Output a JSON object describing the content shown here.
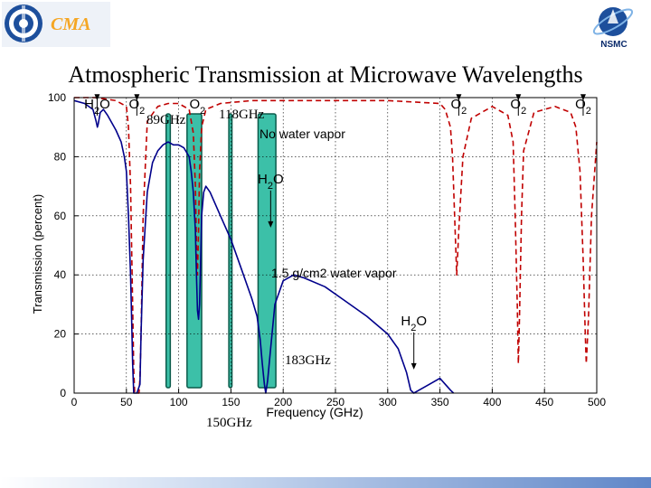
{
  "header": {
    "cma_logo_text": "CMA",
    "nsmc_logo_text": "NSMC",
    "title": "Atmospheric Transmission at Microwave Wavelengths"
  },
  "colors": {
    "no_vapor_curve": "#c00000",
    "vapor_curve": "#00008b",
    "band_fill": "#3cc0a8",
    "band_stroke": "#0b5a4a",
    "grid": "#000000",
    "title_band": "#5f86c8"
  },
  "chart_data": {
    "type": "line",
    "xlabel": "Frequency (GHz)",
    "ylabel": "Transmission (percent)",
    "xlim": [
      0,
      500
    ],
    "ylim": [
      0,
      100
    ],
    "x_ticks": [
      0,
      50,
      100,
      150,
      200,
      250,
      300,
      350,
      400,
      450,
      500
    ],
    "y_ticks": [
      0,
      20,
      40,
      60,
      80,
      100
    ],
    "grid": "dotted",
    "series": [
      {
        "name": "No water vapor",
        "style": "dashed",
        "x": [
          0,
          20,
          40,
          50,
          52,
          54,
          56,
          57,
          58,
          59,
          60,
          61,
          62,
          63,
          64,
          66,
          70,
          80,
          90,
          100,
          110,
          114,
          116,
          117,
          118,
          119,
          120,
          122,
          126,
          140,
          170,
          200,
          250,
          300,
          350,
          355,
          360,
          362,
          364,
          366,
          368,
          372,
          380,
          400,
          415,
          420,
          422,
          424,
          425,
          426,
          428,
          430,
          440,
          460,
          475,
          480,
          484,
          487,
          489,
          490,
          492,
          495,
          500
        ],
        "y": [
          100,
          100,
          99,
          97,
          90,
          70,
          30,
          8,
          0,
          0,
          0,
          0,
          0,
          5,
          20,
          60,
          92,
          97,
          98,
          98,
          96,
          88,
          70,
          50,
          40,
          55,
          75,
          90,
          96,
          98,
          99,
          99,
          99,
          99,
          98,
          96,
          90,
          80,
          60,
          40,
          55,
          80,
          93,
          97,
          94,
          85,
          60,
          30,
          10,
          25,
          60,
          82,
          95,
          97,
          95,
          90,
          75,
          45,
          20,
          10,
          25,
          60,
          85
        ]
      },
      {
        "name": "1.5 g/cm² water vapor",
        "style": "solid",
        "x": [
          0,
          10,
          18,
          21,
          22.2,
          23,
          25,
          28,
          32,
          40,
          45,
          48,
          50,
          52,
          54,
          55,
          56,
          57,
          58,
          60,
          63,
          64,
          66,
          70,
          75,
          80,
          85,
          90,
          95,
          100,
          105,
          110,
          112,
          114,
          116,
          117,
          118,
          119,
          120,
          121,
          122,
          124,
          126,
          130,
          140,
          150,
          160,
          170,
          175,
          178,
          180,
          182,
          183.3,
          185,
          188,
          192,
          200,
          210,
          220,
          240,
          260,
          280,
          300,
          310,
          318,
          322,
          325,
          330,
          340,
          350,
          355,
          360,
          363
        ],
        "y": [
          99,
          98,
          96,
          92,
          90,
          91,
          95,
          96,
          94,
          89,
          85,
          80,
          75,
          60,
          40,
          25,
          10,
          0,
          0,
          0,
          3,
          20,
          45,
          68,
          78,
          82,
          84,
          85,
          84,
          84,
          83,
          80,
          75,
          68,
          55,
          40,
          28,
          25,
          30,
          45,
          60,
          68,
          70,
          68,
          60,
          52,
          42,
          32,
          26,
          18,
          10,
          3,
          0,
          4,
          15,
          30,
          38,
          40,
          39,
          36,
          31,
          26,
          20,
          15,
          7,
          1,
          0,
          1,
          3,
          5,
          3,
          1,
          0
        ]
      }
    ],
    "bands": [
      {
        "label": "89GHz",
        "x": [
          88,
          92
        ]
      },
      {
        "label": "",
        "x": [
          108,
          122
        ]
      },
      {
        "label": "150GHz",
        "x": [
          148,
          151
        ]
      },
      {
        "label": "183GHz",
        "x": [
          176,
          193
        ]
      }
    ],
    "annotations": [
      {
        "text": "H2O",
        "x": 22,
        "arrow_to_y": 99,
        "pos": "top"
      },
      {
        "text": "O2",
        "x": 60,
        "arrow_to_y": 99,
        "pos": "top"
      },
      {
        "text": "O2",
        "x": 118,
        "pos": "top"
      },
      {
        "text": "O2",
        "x": 368,
        "arrow_to_y": 99,
        "pos": "top"
      },
      {
        "text": "O2",
        "x": 425,
        "arrow_to_y": 99,
        "pos": "top"
      },
      {
        "text": "O2",
        "x": 487,
        "arrow_to_y": 99,
        "pos": "top"
      },
      {
        "text": "No water vapor",
        "x": 188,
        "y": 103
      },
      {
        "text": "H2O",
        "x": 188,
        "y": 71,
        "arrow_to_y": 56
      },
      {
        "text": "1.5 g/cm2 water vapor",
        "x": 188,
        "y": 47
      },
      {
        "text": "H2O",
        "x": 325,
        "y": 23,
        "arrow_to_y": 8
      }
    ],
    "labels": {
      "h2o": "H2O",
      "o2": "O2",
      "no_vapor": "No water vapor",
      "vapor": "1.5 g/cm2 water vapor",
      "f89": "89GHz",
      "f118": "118GHz",
      "f150": "150GHz",
      "f183": "183GHz"
    }
  }
}
